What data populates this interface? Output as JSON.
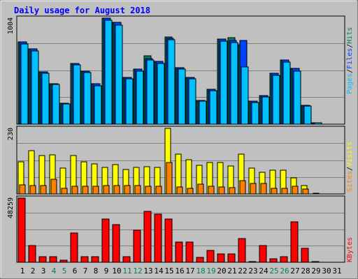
{
  "chart_data": {
    "type": "bar",
    "title": "Daily usage for August 2018",
    "days": [
      "1",
      "2",
      "3",
      "4",
      "5",
      "6",
      "7",
      "8",
      "9",
      "10",
      "11",
      "12",
      "13",
      "14",
      "15",
      "16",
      "17",
      "18",
      "19",
      "20",
      "21",
      "22",
      "23",
      "24",
      "25",
      "26",
      "27",
      "28",
      "29",
      "30",
      "31"
    ],
    "weekend_days": [
      "4",
      "5",
      "11",
      "12",
      "18",
      "19",
      "25",
      "26"
    ],
    "panels": [
      {
        "name": "pages-files-hits",
        "ymax_label": "1004",
        "ymax": 1004,
        "legend": [
          "Pages",
          "/",
          "Files",
          "/",
          "Hits"
        ],
        "series": [
          {
            "name": "Hits",
            "values": [
              780,
              715,
              495,
              385,
              200,
              575,
              500,
              380,
              1004,
              965,
              440,
              520,
              645,
              595,
              825,
              535,
              440,
              225,
              330,
              805,
              820,
              755,
              215,
              270,
              480,
              605,
              530,
              180,
              15,
              0,
              0
            ]
          },
          {
            "name": "Files",
            "values": [
              780,
              715,
              495,
              385,
              200,
              575,
              500,
              380,
              1004,
              965,
              440,
              520,
              620,
              595,
              815,
              535,
              440,
              225,
              330,
              805,
              790,
              790,
              215,
              270,
              480,
              605,
              530,
              180,
              15,
              0,
              0
            ]
          },
          {
            "name": "Pages",
            "values": [
              760,
              695,
              485,
              375,
              190,
              560,
              490,
              365,
              985,
              935,
              430,
              500,
              610,
              575,
              800,
              520,
              430,
              215,
              320,
              785,
              775,
              540,
              205,
              260,
              465,
              590,
              505,
              170,
              10,
              0,
              0
            ]
          }
        ]
      },
      {
        "name": "visits-sites",
        "ymax_label": "230",
        "ymax": 230,
        "legend": [
          "Sites",
          "/",
          "Visits"
        ],
        "series": [
          {
            "name": "Visits",
            "values": [
              112,
              152,
              135,
              136,
              90,
              134,
              112,
              104,
              92,
              103,
              86,
              94,
              96,
              93,
              230,
              140,
              120,
              100,
              110,
              110,
              98,
              140,
              90,
              75,
              83,
              83,
              56,
              30,
              0,
              0,
              0
            ]
          },
          {
            "name": "Sites",
            "values": [
              31,
              30,
              30,
              52,
              20,
              28,
              28,
              26,
              30,
              30,
              30,
              30,
              28,
              28,
              110,
              25,
              20,
              35,
              28,
              25,
              22,
              47,
              36,
              36,
              20,
              20,
              26,
              16,
              3,
              0,
              0
            ]
          }
        ]
      },
      {
        "name": "kbytes",
        "ymax_label": "48259",
        "ymax": 48259,
        "legend": [
          "KBytes"
        ],
        "series": [
          {
            "name": "KBytes",
            "values": [
              48259,
              12580,
              4120,
              4120,
              1540,
              22150,
              4120,
              4120,
              32350,
              28250,
              4120,
              24180,
              38450,
              36450,
              32350,
              14950,
              15380,
              3600,
              9120,
              6450,
              6450,
              18050,
              770,
              12580,
              2560,
              4120,
              30300,
              10250,
              770,
              0,
              0
            ]
          }
        ]
      }
    ],
    "colors": {
      "hits": "#00805c",
      "files": "#0040ff",
      "pages": "#00c0ff",
      "visits": "#ffff00",
      "sites": "#ff8000",
      "kbytes": "#ff0000",
      "title": "#0000ff",
      "weekday_label": "#000000",
      "weekend_label": "#00805c",
      "background": "#c0c0c0",
      "panel_border": "#000000"
    }
  }
}
